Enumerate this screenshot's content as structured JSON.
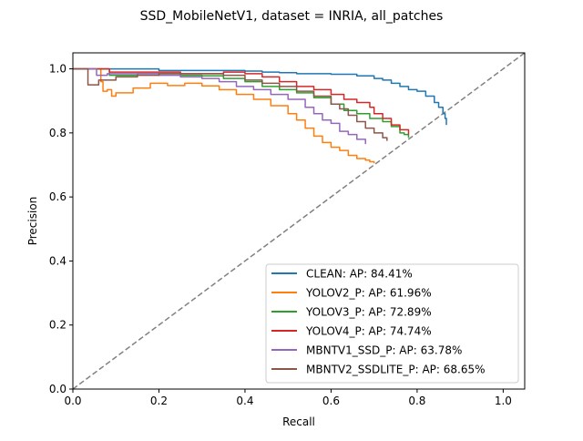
{
  "chart_data": {
    "type": "line",
    "title": "SSD_MobileNetV1, dataset = INRIA, all_patches",
    "xlabel": "Recall",
    "ylabel": "Precision",
    "xlim": [
      0.0,
      1.05
    ],
    "ylim": [
      0.0,
      1.05
    ],
    "xticks": [
      0.0,
      0.2,
      0.4,
      0.6,
      0.8,
      1.0
    ],
    "yticks": [
      0.0,
      0.2,
      0.4,
      0.6,
      0.8,
      1.0
    ],
    "xtick_labels": [
      "0.0",
      "0.2",
      "0.4",
      "0.6",
      "0.8",
      "1.0"
    ],
    "ytick_labels": [
      "0.0",
      "0.2",
      "0.4",
      "0.6",
      "0.8",
      "1.0"
    ],
    "grid": false,
    "legend_position": "lower-right",
    "diagonal": {
      "x": [
        0.0,
        1.05
      ],
      "y": [
        0.0,
        1.05
      ],
      "color": "#808080",
      "style": "dashed"
    },
    "series": [
      {
        "name": "CLEAN: AP: 84.41%",
        "color": "#1f77b4",
        "x": [
          0.0,
          0.1,
          0.2,
          0.2,
          0.3,
          0.36,
          0.4,
          0.44,
          0.48,
          0.52,
          0.56,
          0.6,
          0.63,
          0.66,
          0.7,
          0.72,
          0.74,
          0.76,
          0.78,
          0.8,
          0.82,
          0.84,
          0.85,
          0.86,
          0.865,
          0.868
        ],
        "y": [
          1.0,
          1.0,
          1.0,
          0.995,
          0.995,
          0.995,
          0.993,
          0.99,
          0.988,
          0.985,
          0.985,
          0.983,
          0.983,
          0.978,
          0.97,
          0.965,
          0.955,
          0.945,
          0.935,
          0.93,
          0.915,
          0.895,
          0.88,
          0.86,
          0.845,
          0.825
        ]
      },
      {
        "name": "YOLOV2_P: AP: 61.96%",
        "color": "#ff7f0e",
        "x": [
          0.0,
          0.06,
          0.065,
          0.07,
          0.08,
          0.09,
          0.1,
          0.14,
          0.18,
          0.22,
          0.26,
          0.3,
          0.34,
          0.38,
          0.42,
          0.46,
          0.5,
          0.52,
          0.54,
          0.56,
          0.58,
          0.6,
          0.62,
          0.64,
          0.66,
          0.68,
          0.69,
          0.7
        ],
        "y": [
          1.0,
          1.0,
          0.96,
          0.93,
          0.935,
          0.915,
          0.925,
          0.94,
          0.955,
          0.948,
          0.955,
          0.947,
          0.935,
          0.92,
          0.905,
          0.885,
          0.86,
          0.84,
          0.815,
          0.79,
          0.77,
          0.755,
          0.745,
          0.73,
          0.72,
          0.715,
          0.71,
          0.705
        ]
      },
      {
        "name": "YOLOV3_P: AP: 72.89%",
        "color": "#2ca02c",
        "x": [
          0.0,
          0.08,
          0.085,
          0.1,
          0.15,
          0.2,
          0.25,
          0.3,
          0.35,
          0.4,
          0.44,
          0.48,
          0.52,
          0.56,
          0.6,
          0.63,
          0.66,
          0.69,
          0.72,
          0.74,
          0.76,
          0.77,
          0.78
        ],
        "y": [
          1.0,
          1.0,
          0.98,
          0.98,
          0.985,
          0.985,
          0.98,
          0.978,
          0.97,
          0.96,
          0.945,
          0.935,
          0.925,
          0.91,
          0.89,
          0.87,
          0.86,
          0.845,
          0.835,
          0.82,
          0.8,
          0.795,
          0.785
        ]
      },
      {
        "name": "YOLOV4_P: AP: 74.74%",
        "color": "#d62728",
        "x": [
          0.0,
          0.08,
          0.085,
          0.1,
          0.15,
          0.2,
          0.25,
          0.3,
          0.35,
          0.4,
          0.44,
          0.48,
          0.52,
          0.56,
          0.6,
          0.63,
          0.66,
          0.69,
          0.7,
          0.72,
          0.74,
          0.76,
          0.78
        ],
        "y": [
          1.0,
          1.0,
          0.99,
          0.99,
          0.99,
          0.99,
          0.985,
          0.985,
          0.99,
          0.985,
          0.975,
          0.96,
          0.945,
          0.935,
          0.92,
          0.905,
          0.895,
          0.88,
          0.86,
          0.845,
          0.825,
          0.81,
          0.795
        ]
      },
      {
        "name": "MBNTV1_SSD_P: AP: 63.78%",
        "color": "#9467bd",
        "x": [
          0.0,
          0.05,
          0.055,
          0.08,
          0.12,
          0.16,
          0.2,
          0.25,
          0.3,
          0.34,
          0.38,
          0.42,
          0.46,
          0.5,
          0.54,
          0.56,
          0.58,
          0.6,
          0.62,
          0.64,
          0.66,
          0.68
        ],
        "y": [
          1.0,
          1.0,
          0.98,
          0.985,
          0.985,
          0.985,
          0.98,
          0.975,
          0.97,
          0.96,
          0.945,
          0.935,
          0.92,
          0.905,
          0.88,
          0.86,
          0.84,
          0.83,
          0.805,
          0.795,
          0.78,
          0.765
        ]
      },
      {
        "name": "MBNTV2_SSDLITE_P: AP: 68.65%",
        "color": "#8c564b",
        "x": [
          0.0,
          0.03,
          0.035,
          0.06,
          0.1,
          0.15,
          0.2,
          0.25,
          0.3,
          0.35,
          0.4,
          0.44,
          0.48,
          0.52,
          0.56,
          0.6,
          0.62,
          0.64,
          0.66,
          0.68,
          0.7,
          0.72,
          0.73
        ],
        "y": [
          1.0,
          1.0,
          0.95,
          0.965,
          0.975,
          0.98,
          0.985,
          0.985,
          0.985,
          0.98,
          0.965,
          0.955,
          0.945,
          0.93,
          0.915,
          0.89,
          0.875,
          0.855,
          0.835,
          0.815,
          0.8,
          0.785,
          0.775
        ]
      }
    ]
  }
}
